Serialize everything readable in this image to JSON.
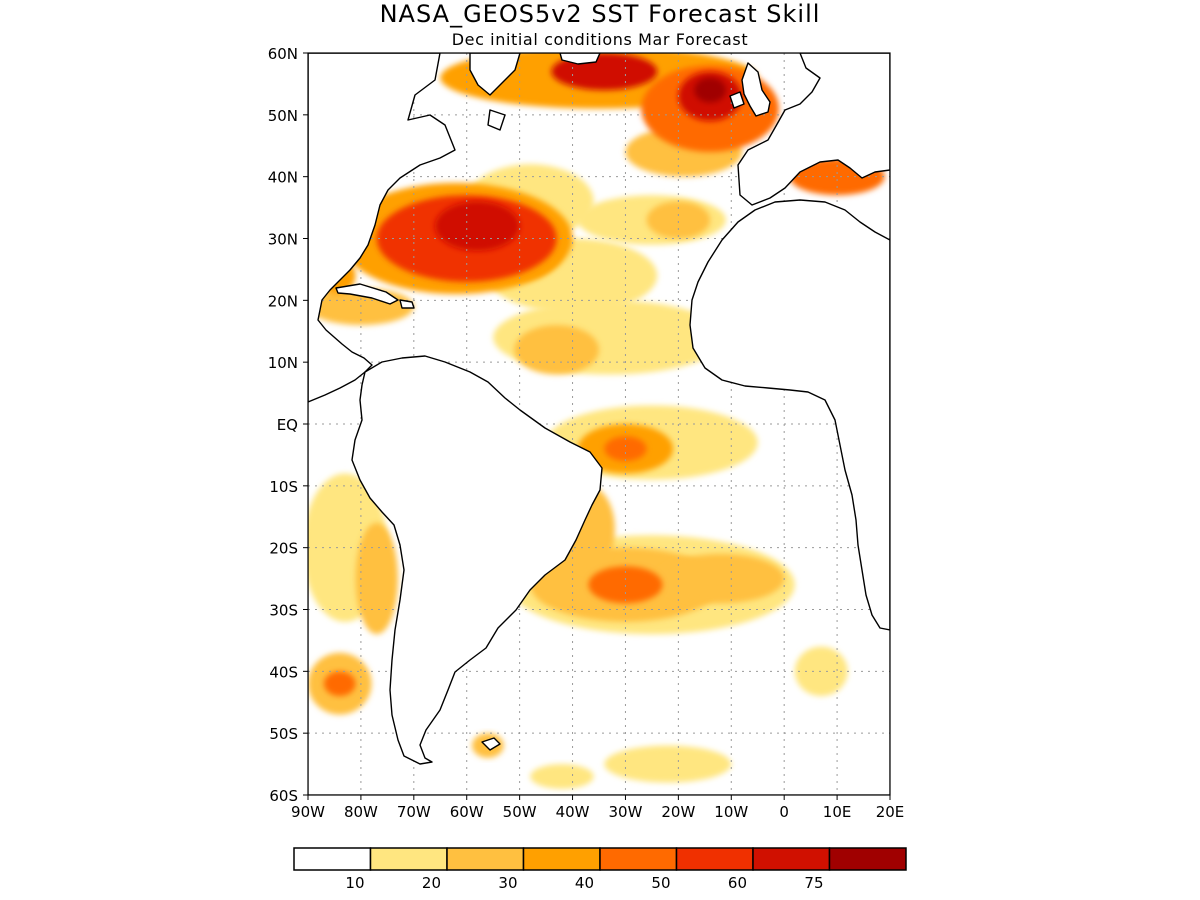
{
  "title": "NASA_GEOS5v2 SST Forecast Skill",
  "subtitle": "Dec initial conditions   Mar Forecast",
  "map": {
    "lon_range": [
      -90,
      20
    ],
    "lat_range": [
      -60,
      60
    ],
    "lat_ticks": [
      {
        "value": 60,
        "label": "60N"
      },
      {
        "value": 50,
        "label": "50N"
      },
      {
        "value": 40,
        "label": "40N"
      },
      {
        "value": 30,
        "label": "30N"
      },
      {
        "value": 20,
        "label": "20N"
      },
      {
        "value": 10,
        "label": "10N"
      },
      {
        "value": 0,
        "label": "EQ"
      },
      {
        "value": -10,
        "label": "10S"
      },
      {
        "value": -20,
        "label": "20S"
      },
      {
        "value": -30,
        "label": "30S"
      },
      {
        "value": -40,
        "label": "40S"
      },
      {
        "value": -50,
        "label": "50S"
      },
      {
        "value": -60,
        "label": "60S"
      }
    ],
    "lon_ticks": [
      {
        "value": -90,
        "label": "90W"
      },
      {
        "value": -80,
        "label": "80W"
      },
      {
        "value": -70,
        "label": "70W"
      },
      {
        "value": -60,
        "label": "60W"
      },
      {
        "value": -50,
        "label": "50W"
      },
      {
        "value": -40,
        "label": "40W"
      },
      {
        "value": -30,
        "label": "30W"
      },
      {
        "value": -20,
        "label": "20W"
      },
      {
        "value": -10,
        "label": "10W"
      },
      {
        "value": 0,
        "label": "0"
      },
      {
        "value": 10,
        "label": "10E"
      },
      {
        "value": 20,
        "label": "20E"
      }
    ]
  },
  "colorbar": {
    "colors": [
      "#ffffff",
      "#ffe680",
      "#ffc040",
      "#ffa000",
      "#ff6a00",
      "#f03000",
      "#d01000",
      "#a00000"
    ],
    "labels": [
      "10",
      "20",
      "30",
      "40",
      "50",
      "60",
      "75"
    ]
  },
  "skill_regions": [
    {
      "lon": -35,
      "lat": 56,
      "rlon": 30,
      "rlat": 5,
      "level": 3
    },
    {
      "lon": -34,
      "lat": 57,
      "rlon": 10,
      "rlat": 3,
      "level": 6
    },
    {
      "lon": -14,
      "lat": 51,
      "rlon": 13,
      "rlat": 7,
      "level": 4
    },
    {
      "lon": -14,
      "lat": 53,
      "rlon": 6,
      "rlat": 4,
      "level": 6
    },
    {
      "lon": -14,
      "lat": 54,
      "rlon": 3,
      "rlat": 2,
      "level": 7
    },
    {
      "lon": -19,
      "lat": 44,
      "rlon": 11,
      "rlat": 4,
      "level": 2
    },
    {
      "lon": -20,
      "lat": 33,
      "rlon": 6,
      "rlat": 3,
      "level": 2
    },
    {
      "lon": -62,
      "lat": 30,
      "rlon": 22,
      "rlat": 9,
      "level": 3
    },
    {
      "lon": -60,
      "lat": 30,
      "rlon": 17,
      "rlat": 7,
      "level": 5
    },
    {
      "lon": -58,
      "lat": 32,
      "rlon": 8,
      "rlat": 4,
      "level": 6
    },
    {
      "lon": -52,
      "lat": 28,
      "rlon": 10,
      "rlat": 5,
      "level": 3
    },
    {
      "lon": -48,
      "lat": 36,
      "rlon": 12,
      "rlat": 6,
      "level": 1
    },
    {
      "lon": -40,
      "lat": 24,
      "rlon": 16,
      "rlat": 6,
      "level": 1
    },
    {
      "lon": -33,
      "lat": 14,
      "rlon": 22,
      "rlat": 6,
      "level": 1
    },
    {
      "lon": -43,
      "lat": 12,
      "rlon": 8,
      "rlat": 4,
      "level": 2
    },
    {
      "lon": -25,
      "lat": 33,
      "rlon": 14,
      "rlat": 4,
      "level": 1
    },
    {
      "lon": -85,
      "lat": 24,
      "rlon": 4,
      "rlat": 3,
      "level": 3
    },
    {
      "lon": -80,
      "lat": 19,
      "rlon": 10,
      "rlat": 3,
      "level": 2
    },
    {
      "lon": -25,
      "lat": -3,
      "rlon": 20,
      "rlat": 6,
      "level": 1
    },
    {
      "lon": -30,
      "lat": -4,
      "rlon": 9,
      "rlat": 4,
      "level": 3
    },
    {
      "lon": -30,
      "lat": -4,
      "rlon": 4,
      "rlat": 2,
      "level": 4
    },
    {
      "lon": -25,
      "lat": -26,
      "rlon": 27,
      "rlat": 8,
      "level": 1
    },
    {
      "lon": -30,
      "lat": -26,
      "rlon": 18,
      "rlat": 6,
      "level": 2
    },
    {
      "lon": -30,
      "lat": -26,
      "rlon": 7,
      "rlat": 3,
      "level": 4
    },
    {
      "lon": -12,
      "lat": -25,
      "rlon": 12,
      "rlat": 4,
      "level": 2
    },
    {
      "lon": -37,
      "lat": -17,
      "rlon": 5,
      "rlat": 7,
      "level": 2
    },
    {
      "lon": -83,
      "lat": -20,
      "rlon": 8,
      "rlat": 12,
      "level": 1
    },
    {
      "lon": -77,
      "lat": -25,
      "rlon": 4,
      "rlat": 9,
      "level": 2
    },
    {
      "lon": -84,
      "lat": -42,
      "rlon": 6,
      "rlat": 5,
      "level": 2
    },
    {
      "lon": -84,
      "lat": -42,
      "rlon": 3,
      "rlat": 2,
      "level": 4
    },
    {
      "lon": 10,
      "lat": 40,
      "rlon": 9,
      "rlat": 3,
      "level": 4
    },
    {
      "lon": -22,
      "lat": -55,
      "rlon": 12,
      "rlat": 3,
      "level": 1
    },
    {
      "lon": -42,
      "lat": -57,
      "rlon": 6,
      "rlat": 2,
      "level": 1
    },
    {
      "lon": 7,
      "lat": -40,
      "rlon": 5,
      "rlat": 4,
      "level": 1
    },
    {
      "lon": -56,
      "lat": -52,
      "rlon": 3,
      "rlat": 2,
      "level": 2
    }
  ]
}
